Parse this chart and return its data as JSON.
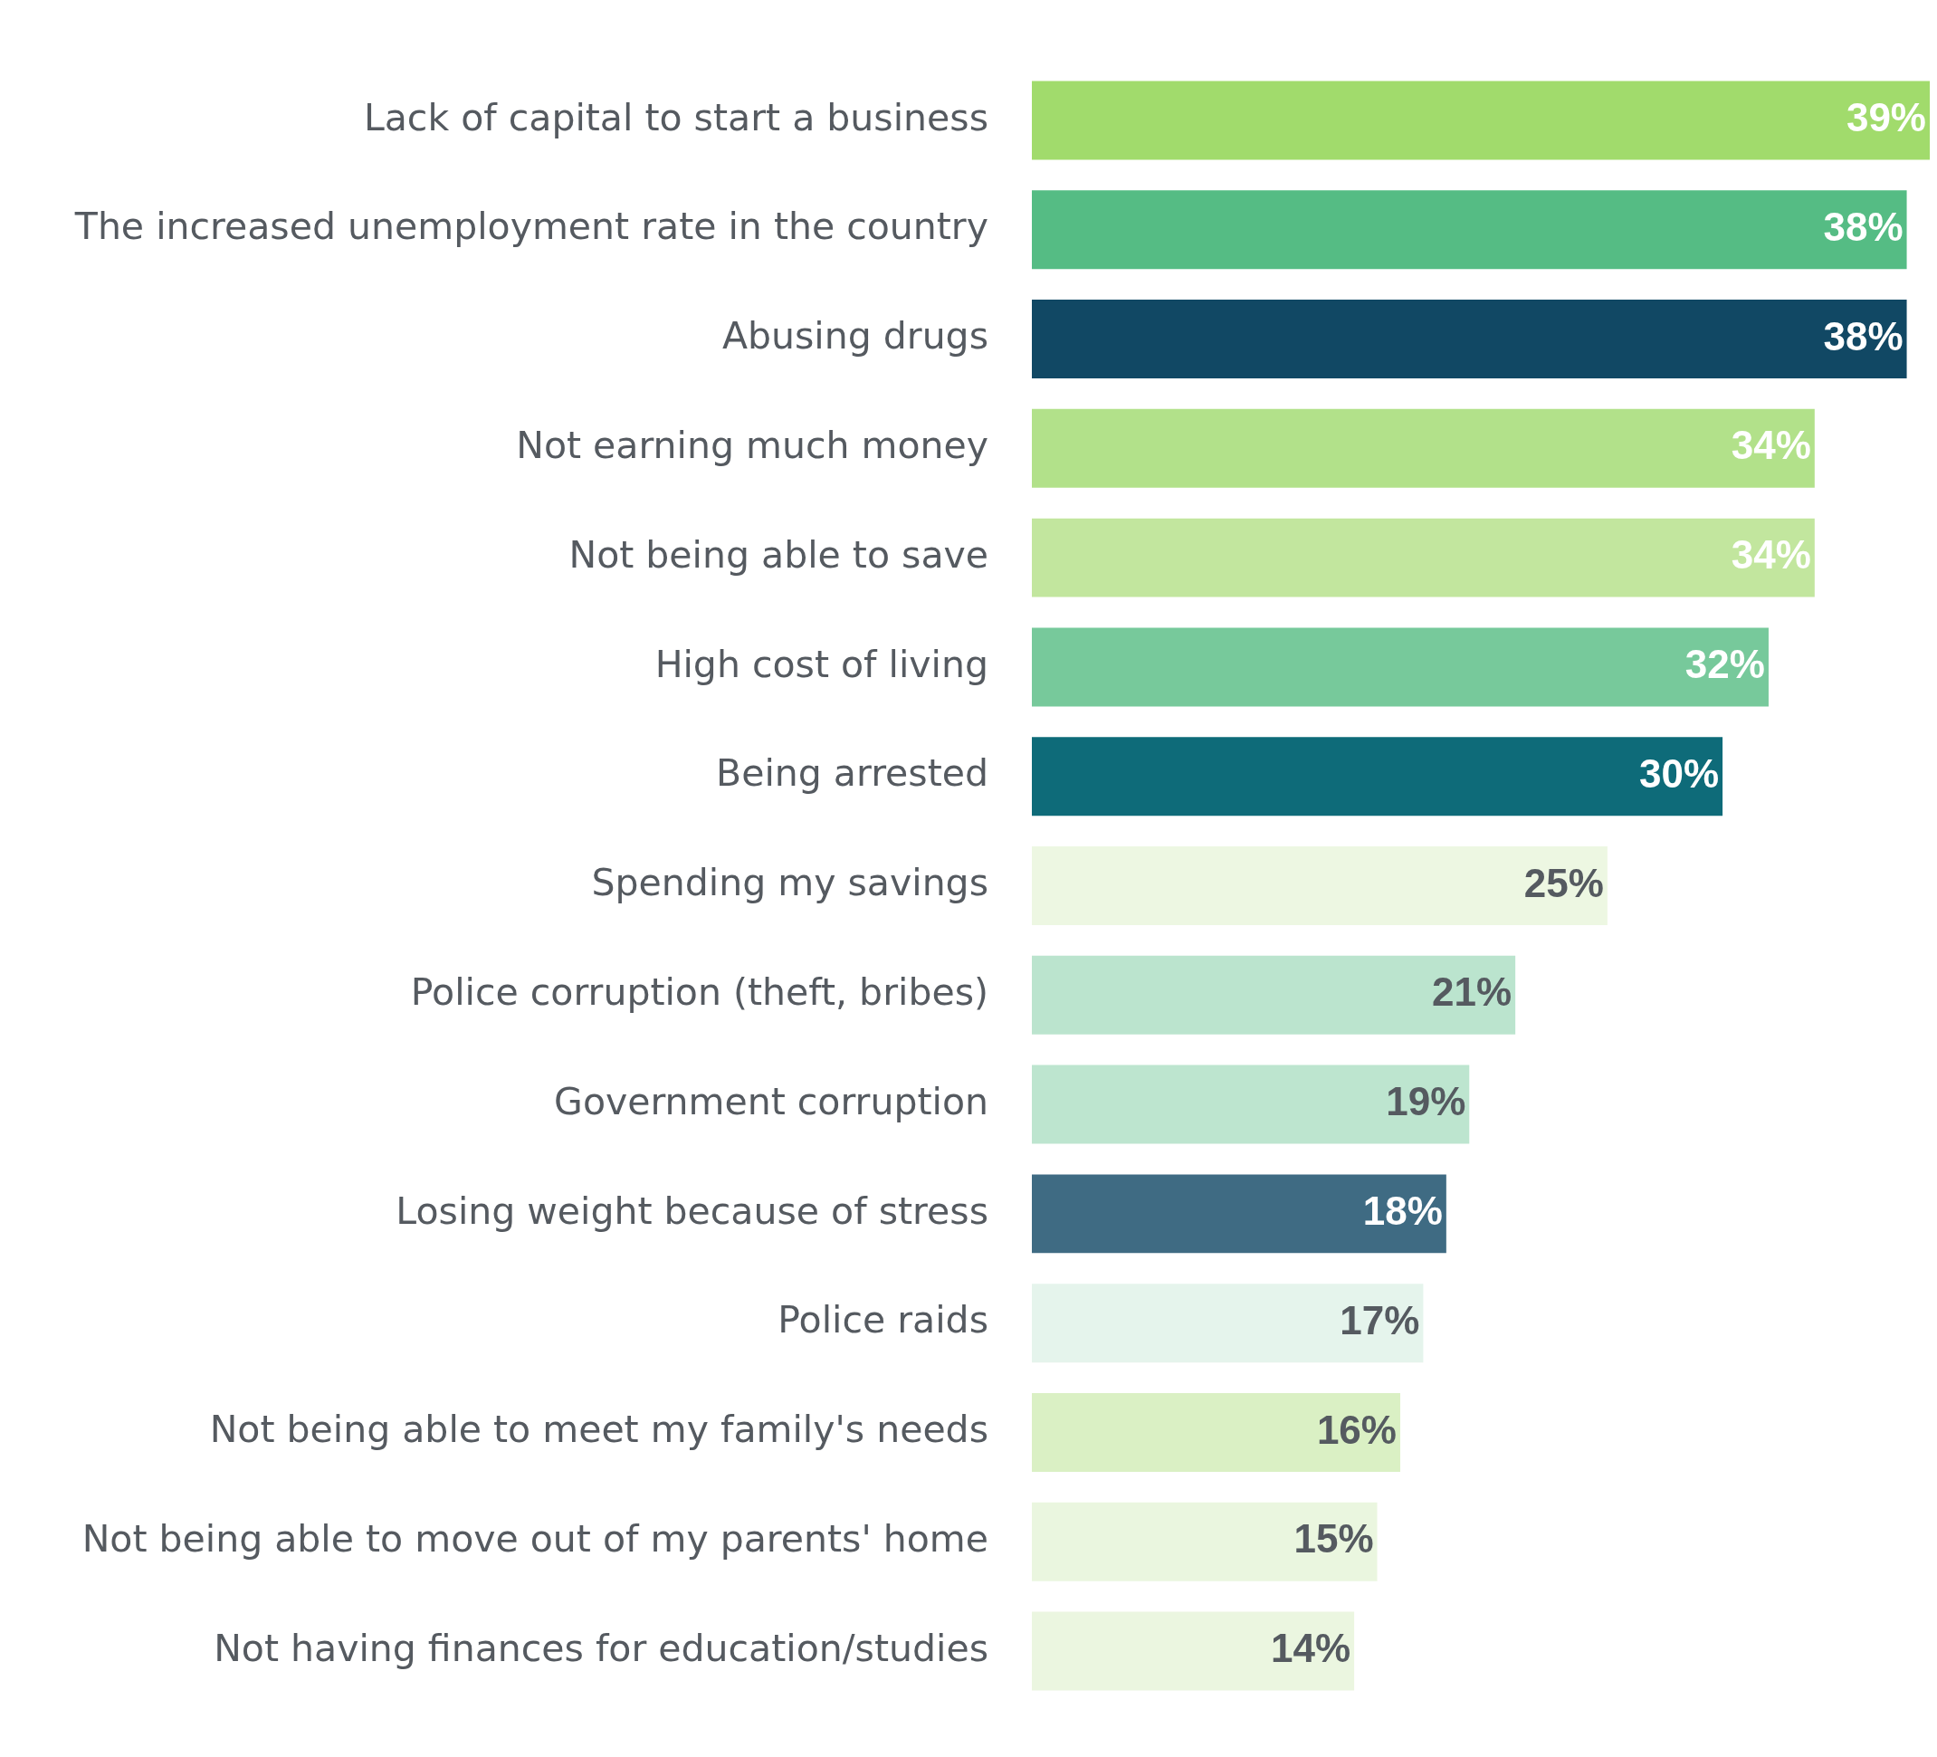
{
  "chart_data": {
    "type": "bar",
    "orientation": "horizontal",
    "data_labels": true,
    "categories": [
      "Lack of capital to start a business",
      "The increased unemployment rate in the country",
      "Abusing drugs",
      "Not earning much money",
      "Not being able to save",
      "High cost of living",
      "Being arrested",
      "Spending my savings",
      "Police corruption (theft, bribes)",
      "Government corruption",
      "Losing weight because of stress",
      "Police raids",
      "Not being able to meet my family's needs",
      "Not being able to move out of my parents' home",
      "Not having finances for education/studies"
    ],
    "values": [
      39,
      38,
      38,
      34,
      34,
      32,
      30,
      25,
      21,
      19,
      18,
      17,
      16,
      15,
      14
    ],
    "value_labels": [
      "39%",
      "38%",
      "38%",
      "34%",
      "34%",
      "32%",
      "30%",
      "25%",
      "21%",
      "19%",
      "18%",
      "17%",
      "16%",
      "15%",
      "14%"
    ],
    "colors": [
      "#a1db6c",
      "#55bc84",
      "#114864",
      "#b2e18a",
      "#c2e69e",
      "#77c99b",
      "#0e6b79",
      "#edf7e2",
      "#bbe4ce",
      "#bde5cf",
      "#3f6b83",
      "#e5f4ec",
      "#daf0c4",
      "#eaf6df",
      "#ebf6e0"
    ],
    "legend": false
  }
}
